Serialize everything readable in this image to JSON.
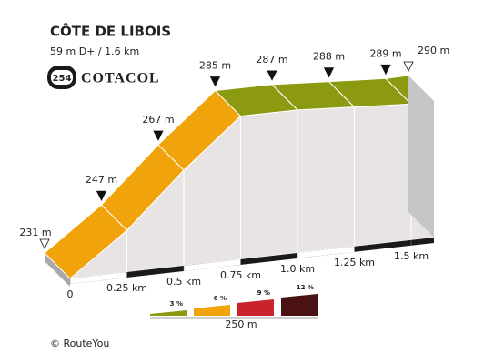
{
  "chart_data": {
    "type": "profile",
    "title": "CÔTE DE LIBOIS",
    "subtitle": "59 m D+ / 1.6 km",
    "badge": "254",
    "badge_label": "COTACOL",
    "x": [
      0,
      0.25,
      0.5,
      0.75,
      1.0,
      1.25,
      1.5,
      1.6
    ],
    "values": [
      231,
      247,
      267,
      285,
      287,
      288,
      289,
      290
    ],
    "value_labels": [
      "231 m",
      "247 m",
      "267 m",
      "285 m",
      "287 m",
      "288 m",
      "289 m",
      "290 m"
    ],
    "xlim": [
      0,
      1.6
    ],
    "ylim": [
      231,
      290
    ],
    "xticks": [
      {
        "value": 0,
        "label": "0"
      },
      {
        "value": 0.25,
        "label": "0.25 km"
      },
      {
        "value": 0.5,
        "label": "0.5 km"
      },
      {
        "value": 0.75,
        "label": "0.75 km"
      },
      {
        "value": 1.0,
        "label": "1.0 km"
      },
      {
        "value": 1.25,
        "label": "1.25 km"
      },
      {
        "value": 1.5,
        "label": "1.5 km"
      }
    ],
    "grade_legend": {
      "values": [
        3,
        6,
        9,
        12
      ],
      "value_labels": [
        "3 %",
        "6 %",
        "9 %",
        "12 %"
      ],
      "colors": [
        "#8c9a12",
        "#f0a30a",
        "#c9232c",
        "#4a1212"
      ],
      "scale_label": "250 m"
    },
    "credit": "© RouteYou"
  }
}
